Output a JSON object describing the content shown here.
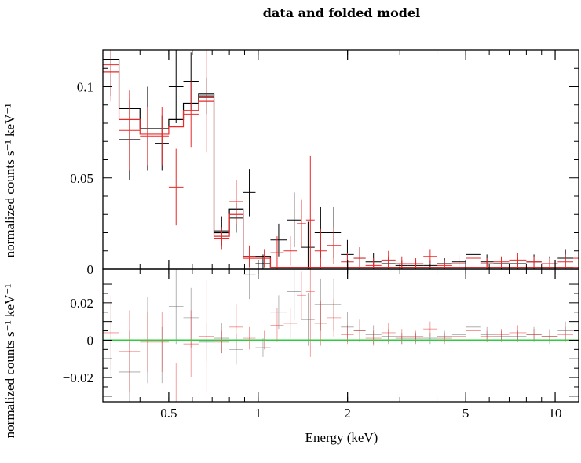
{
  "chart_data": {
    "type": "scatter",
    "title": "data and folded model",
    "xlabel": "Energy (keV)",
    "ylabel_top": "normalized counts s⁻¹ keV⁻¹",
    "ylabel_bottom": "normalized counts s⁻¹ keV⁻¹",
    "x_scale": "log",
    "xlim": [
      0.3,
      12
    ],
    "x_ticks": [
      {
        "value": 0.5,
        "label": "0.5"
      },
      {
        "value": 1,
        "label": "1"
      },
      {
        "value": 2,
        "label": "2"
      },
      {
        "value": 5,
        "label": "5"
      },
      {
        "value": 10,
        "label": "10"
      }
    ],
    "top_panel": {
      "ylim": [
        0,
        0.12
      ],
      "y_ticks": [
        {
          "value": 0,
          "label": "0"
        },
        {
          "value": 0.05,
          "label": "0.05"
        },
        {
          "value": 0.1,
          "label": "0.1"
        }
      ],
      "series": [
        {
          "color": "#000000",
          "role": "data",
          "points": [
            {
              "x0": 0.3,
              "x1": 0.34,
              "y": 0.115,
              "yerr": 0.02
            },
            {
              "x0": 0.34,
              "x1": 0.4,
              "y": 0.071,
              "yerr": 0.022
            },
            {
              "x0": 0.4,
              "x1": 0.45,
              "y": 0.077,
              "yerr": 0.023
            },
            {
              "x0": 0.45,
              "x1": 0.5,
              "y": 0.069,
              "yerr": 0.015
            },
            {
              "x0": 0.5,
              "x1": 0.56,
              "y": 0.1,
              "yerr": 0.02
            },
            {
              "x0": 0.56,
              "x1": 0.63,
              "y": 0.103,
              "yerr": 0.016
            },
            {
              "x0": 0.63,
              "x1": 0.71,
              "y": 0.095,
              "yerr": 0.01
            },
            {
              "x0": 0.71,
              "x1": 0.8,
              "y": 0.021,
              "yerr": 0.008
            },
            {
              "x0": 0.8,
              "x1": 0.89,
              "y": 0.028,
              "yerr": 0.008
            },
            {
              "x0": 0.89,
              "x1": 0.98,
              "y": 0.042,
              "yerr": 0.013
            },
            {
              "x0": 0.98,
              "x1": 1.1,
              "y": 0.003,
              "yerr": 0.005
            },
            {
              "x0": 1.1,
              "x1": 1.25,
              "y": 0.016,
              "yerr": 0.009
            },
            {
              "x0": 1.25,
              "x1": 1.4,
              "y": 0.027,
              "yerr": 0.015
            },
            {
              "x0": 1.4,
              "x1": 1.55,
              "y": 0.012,
              "yerr": 0.014
            },
            {
              "x0": 1.55,
              "x1": 1.7,
              "y": 0.02,
              "yerr": 0.014
            },
            {
              "x0": 1.7,
              "x1": 1.9,
              "y": 0.02,
              "yerr": 0.014
            },
            {
              "x0": 1.9,
              "x1": 2.1,
              "y": 0.008,
              "yerr": 0.008
            },
            {
              "x0": 2.1,
              "x1": 2.3,
              "y": 0.006,
              "yerr": 0.006
            },
            {
              "x0": 2.3,
              "x1": 2.6,
              "y": 0.004,
              "yerr": 0.005
            },
            {
              "x0": 2.6,
              "x1": 2.9,
              "y": 0.003,
              "yerr": 0.004
            },
            {
              "x0": 2.9,
              "x1": 3.2,
              "y": 0.002,
              "yerr": 0.003
            },
            {
              "x0": 3.2,
              "x1": 3.6,
              "y": 0.002,
              "yerr": 0.003
            },
            {
              "x0": 3.6,
              "x1": 4.0,
              "y": 0.002,
              "yerr": 0.003
            },
            {
              "x0": 4.0,
              "x1": 4.5,
              "y": 0.003,
              "yerr": 0.003
            },
            {
              "x0": 4.5,
              "x1": 5.0,
              "y": 0.004,
              "yerr": 0.004
            },
            {
              "x0": 5.0,
              "x1": 5.6,
              "y": 0.008,
              "yerr": 0.005
            },
            {
              "x0": 5.6,
              "x1": 6.2,
              "y": 0.004,
              "yerr": 0.004
            },
            {
              "x0": 6.2,
              "x1": 7.0,
              "y": 0.003,
              "yerr": 0.003
            },
            {
              "x0": 7.0,
              "x1": 8.0,
              "y": 0.003,
              "yerr": 0.003
            },
            {
              "x0": 8.0,
              "x1": 9.0,
              "y": 0.004,
              "yerr": 0.004
            },
            {
              "x0": 9.0,
              "x1": 10.2,
              "y": 0.003,
              "yerr": 0.004
            },
            {
              "x0": 10.2,
              "x1": 11.5,
              "y": 0.006,
              "yerr": 0.005
            }
          ],
          "model": [
            {
              "x0": 0.3,
              "x1": 0.34,
              "y": 0.115
            },
            {
              "x0": 0.34,
              "x1": 0.4,
              "y": 0.088
            },
            {
              "x0": 0.4,
              "x1": 0.45,
              "y": 0.077
            },
            {
              "x0": 0.45,
              "x1": 0.5,
              "y": 0.077
            },
            {
              "x0": 0.5,
              "x1": 0.56,
              "y": 0.082
            },
            {
              "x0": 0.56,
              "x1": 0.63,
              "y": 0.091
            },
            {
              "x0": 0.63,
              "x1": 0.71,
              "y": 0.096
            },
            {
              "x0": 0.71,
              "x1": 0.8,
              "y": 0.02
            },
            {
              "x0": 0.8,
              "x1": 0.89,
              "y": 0.033
            },
            {
              "x0": 0.89,
              "x1": 1.1,
              "y": 0.007
            },
            {
              "x0": 1.1,
              "x1": 1.4,
              "y": 0.001
            },
            {
              "x0": 1.4,
              "x1": 11.5,
              "y": 0.001
            }
          ]
        },
        {
          "color": "#e8292a",
          "role": "data",
          "points": [
            {
              "x0": 0.3,
              "x1": 0.34,
              "y": 0.112,
              "yerr": 0.02
            },
            {
              "x0": 0.34,
              "x1": 0.4,
              "y": 0.076,
              "yerr": 0.022
            },
            {
              "x0": 0.4,
              "x1": 0.45,
              "y": 0.073,
              "yerr": 0.016
            },
            {
              "x0": 0.45,
              "x1": 0.5,
              "y": 0.073,
              "yerr": 0.016
            },
            {
              "x0": 0.5,
              "x1": 0.56,
              "y": 0.045,
              "yerr": 0.021
            },
            {
              "x0": 0.56,
              "x1": 0.63,
              "y": 0.085,
              "yerr": 0.018
            },
            {
              "x0": 0.63,
              "x1": 0.71,
              "y": 0.094,
              "yerr": 0.03
            },
            {
              "x0": 0.71,
              "x1": 0.8,
              "y": 0.017,
              "yerr": 0.006
            },
            {
              "x0": 0.8,
              "x1": 0.89,
              "y": 0.037,
              "yerr": 0.012
            },
            {
              "x0": 0.89,
              "x1": 0.98,
              "y": 0.007,
              "yerr": 0.006
            },
            {
              "x0": 1.0,
              "x1": 1.1,
              "y": 0.006,
              "yerr": 0.005
            },
            {
              "x0": 1.1,
              "x1": 1.22,
              "y": 0.009,
              "yerr": 0.009
            },
            {
              "x0": 1.22,
              "x1": 1.35,
              "y": 0.01,
              "yerr": 0.008
            },
            {
              "x0": 1.35,
              "x1": 1.45,
              "y": 0.025,
              "yerr": 0.013
            },
            {
              "x0": 1.45,
              "x1": 1.55,
              "y": 0.027,
              "yerr": 0.035
            },
            {
              "x0": 1.55,
              "x1": 1.7,
              "y": 0.01,
              "yerr": 0.012
            },
            {
              "x0": 1.7,
              "x1": 1.9,
              "y": 0.013,
              "yerr": 0.01
            },
            {
              "x0": 1.9,
              "x1": 2.1,
              "y": 0.004,
              "yerr": 0.005
            },
            {
              "x0": 2.1,
              "x1": 2.3,
              "y": 0.006,
              "yerr": 0.006
            },
            {
              "x0": 2.3,
              "x1": 2.6,
              "y": 0.002,
              "yerr": 0.004
            },
            {
              "x0": 2.6,
              "x1": 2.9,
              "y": 0.005,
              "yerr": 0.005
            },
            {
              "x0": 2.9,
              "x1": 3.2,
              "y": 0.003,
              "yerr": 0.004
            },
            {
              "x0": 3.2,
              "x1": 3.6,
              "y": 0.003,
              "yerr": 0.003
            },
            {
              "x0": 3.6,
              "x1": 4.0,
              "y": 0.007,
              "yerr": 0.004
            },
            {
              "x0": 4.0,
              "x1": 4.5,
              "y": 0.002,
              "yerr": 0.003
            },
            {
              "x0": 4.5,
              "x1": 5.0,
              "y": 0.003,
              "yerr": 0.003
            },
            {
              "x0": 5.0,
              "x1": 5.6,
              "y": 0.006,
              "yerr": 0.004
            },
            {
              "x0": 5.6,
              "x1": 6.2,
              "y": 0.003,
              "yerr": 0.003
            },
            {
              "x0": 6.2,
              "x1": 7.0,
              "y": 0.004,
              "yerr": 0.003
            },
            {
              "x0": 7.0,
              "x1": 8.0,
              "y": 0.005,
              "yerr": 0.004
            },
            {
              "x0": 8.0,
              "x1": 9.0,
              "y": 0.004,
              "yerr": 0.003
            },
            {
              "x0": 9.0,
              "x1": 10.2,
              "y": 0.003,
              "yerr": 0.003
            },
            {
              "x0": 10.2,
              "x1": 11.5,
              "y": 0.004,
              "yerr": 0.004
            },
            {
              "x0": 11.5,
              "x1": 12.0,
              "y": 0.006,
              "yerr": 0.004
            }
          ],
          "model": [
            {
              "x0": 0.3,
              "x1": 0.34,
              "y": 0.108
            },
            {
              "x0": 0.34,
              "x1": 0.4,
              "y": 0.082
            },
            {
              "x0": 0.4,
              "x1": 0.45,
              "y": 0.074
            },
            {
              "x0": 0.45,
              "x1": 0.5,
              "y": 0.074
            },
            {
              "x0": 0.5,
              "x1": 0.56,
              "y": 0.078
            },
            {
              "x0": 0.56,
              "x1": 0.63,
              "y": 0.087
            },
            {
              "x0": 0.63,
              "x1": 0.71,
              "y": 0.092
            },
            {
              "x0": 0.71,
              "x1": 0.8,
              "y": 0.018
            },
            {
              "x0": 0.8,
              "x1": 0.89,
              "y": 0.03
            },
            {
              "x0": 0.89,
              "x1": 1.1,
              "y": 0.006
            },
            {
              "x0": 1.1,
              "x1": 1.4,
              "y": 0.001
            },
            {
              "x0": 1.4,
              "x1": 12.0,
              "y": 0.001
            }
          ]
        }
      ]
    },
    "bottom_panel": {
      "ylim": [
        -0.033,
        0.038
      ],
      "y_ticks": [
        {
          "value": -0.02,
          "label": "−0.02"
        },
        {
          "value": 0,
          "label": "0"
        },
        {
          "value": 0.02,
          "label": "0.02"
        }
      ],
      "zero_line_color": "#2ecc40",
      "residual_colors": [
        "#555555",
        "#e8292a"
      ]
    }
  }
}
